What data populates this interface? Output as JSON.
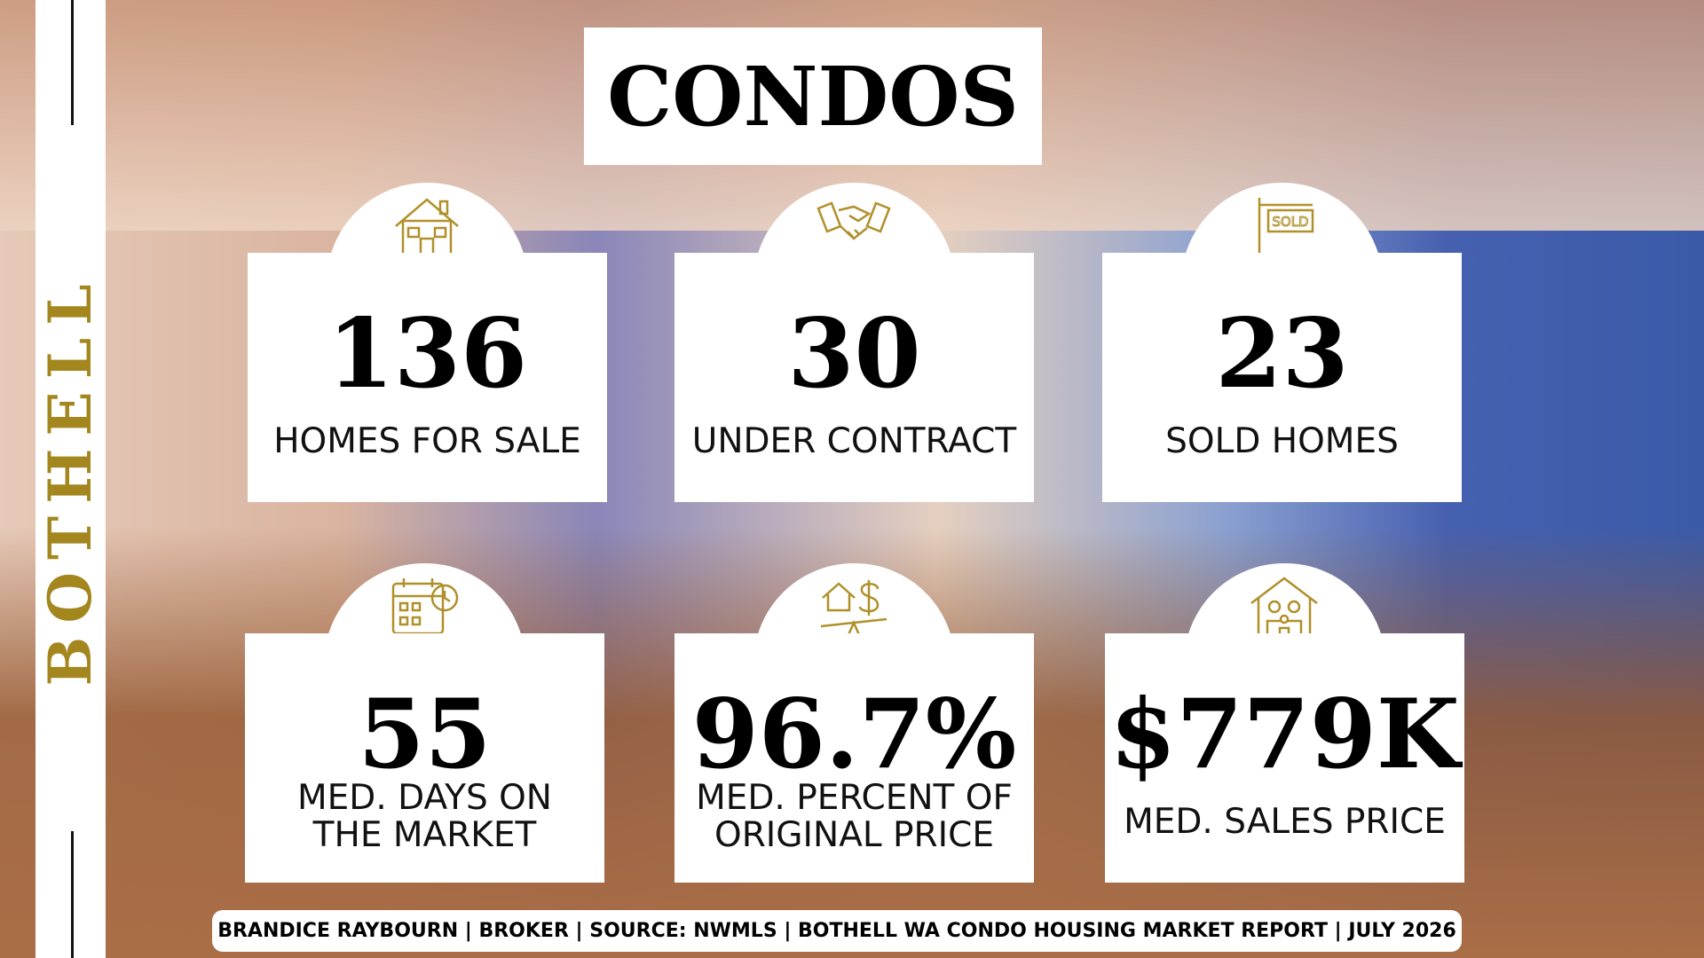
{
  "side_title": "BOTHELL",
  "header": {
    "title": "CONDOS"
  },
  "stats": [
    {
      "value": "136",
      "label_lines": [
        "HOMES FOR SALE"
      ],
      "icon": "house"
    },
    {
      "value": "30",
      "label_lines": [
        "UNDER CONTRACT"
      ],
      "icon": "handshake"
    },
    {
      "value": "23",
      "label_lines": [
        "SOLD HOMES"
      ],
      "icon": "sold"
    },
    {
      "value": "55",
      "label_lines": [
        "MED. DAYS ON",
        "THE MARKET"
      ],
      "icon": "calendar"
    },
    {
      "value": "96.7%",
      "label_lines": [
        "MED. PERCENT OF",
        "ORIGINAL PRICE"
      ],
      "icon": "scale"
    },
    {
      "value": "$779K",
      "label_lines": [
        "MED. SALES PRICE"
      ],
      "icon": "family"
    }
  ],
  "footer": "BRANDICE RAYBOURN | BROKER | SOURCE: NWMLS | BOTHELL WA CONDO HOUSING MARKET REPORT | JULY 2026"
}
